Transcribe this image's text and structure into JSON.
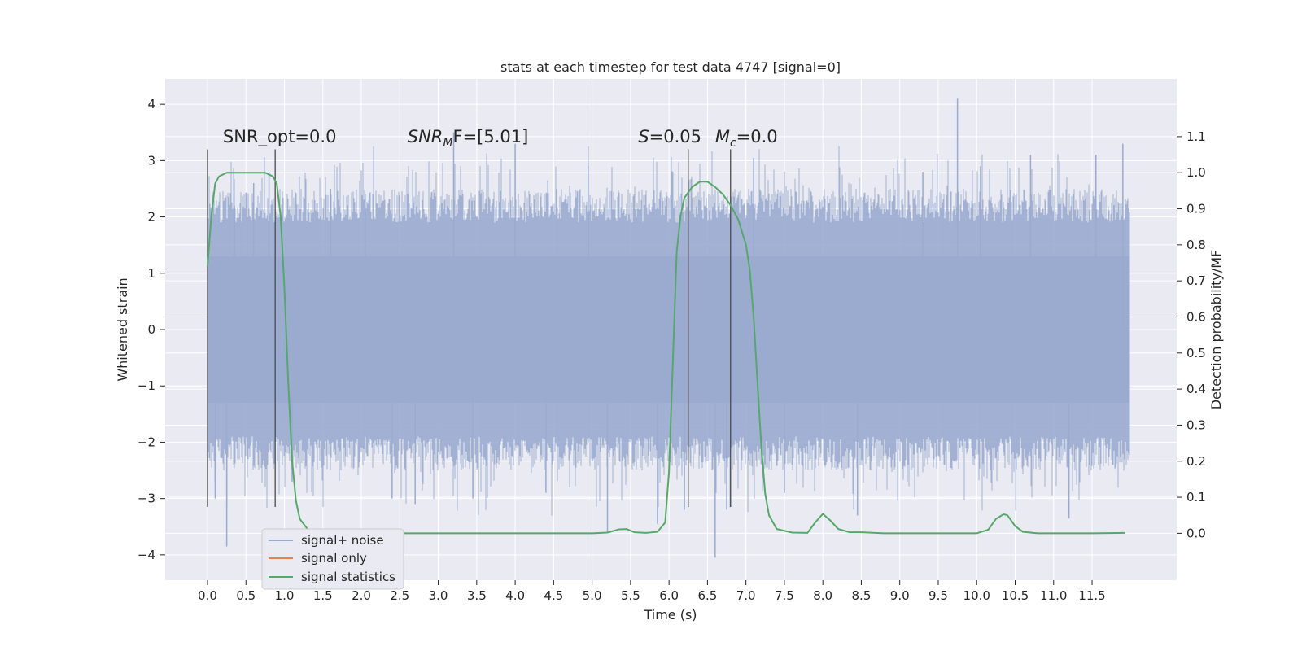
{
  "chart_data": {
    "type": "line",
    "title": "stats at each timestep for test data 4747 [signal=0]",
    "xlabel": "Time (s)",
    "ylabel": "Whitened strain",
    "y2label": "Detection probability/MF",
    "xlim": [
      -0.55,
      12.6
    ],
    "ylim": [
      -4.45,
      4.45
    ],
    "y2lim": [
      -0.13,
      1.26
    ],
    "x_ticks": [
      0.0,
      0.5,
      1.0,
      1.5,
      2.0,
      2.5,
      3.0,
      3.5,
      4.0,
      4.5,
      5.0,
      5.5,
      6.0,
      6.5,
      7.0,
      7.5,
      8.0,
      8.5,
      9.0,
      9.5,
      10.0,
      10.5,
      11.0,
      11.5
    ],
    "x_tick_labels": [
      "0.0",
      "0.5",
      "1.0",
      "1.5",
      "2.0",
      "2.5",
      "3.0",
      "3.5",
      "4.0",
      "4.5",
      "5.0",
      "5.5",
      "6.0",
      "6.5",
      "7.0",
      "7.5",
      "8.0",
      "8.5",
      "9.0",
      "9.5",
      "10.0",
      "10.5",
      "11.0",
      "11.5"
    ],
    "y_ticks": [
      4,
      3,
      2,
      1,
      0,
      -1,
      -2,
      -3,
      -4
    ],
    "y_tick_labels": [
      "4",
      "3",
      "2",
      "1",
      "0",
      "−1",
      "−2",
      "−3",
      "−4"
    ],
    "y2_ticks": [
      1.1,
      1.0,
      0.9,
      0.8,
      0.7,
      0.6,
      0.5,
      0.4,
      0.3,
      0.2,
      0.1,
      0.0
    ],
    "y2_tick_labels": [
      "1.1",
      "1.0",
      "0.9",
      "0.8",
      "0.7",
      "0.6",
      "0.5",
      "0.4",
      "0.3",
      "0.2",
      "0.1",
      "0.0"
    ],
    "grid": true,
    "legend_position": "lower-left",
    "colors": {
      "background": "#eaeaf2",
      "grid": "#ffffff",
      "noise": "#9aabcf",
      "signal": "#dd8452",
      "stats": "#55a868",
      "marker": "#4a4a4a"
    },
    "series": [
      {
        "name": "signal+ noise",
        "axis": "left",
        "x_range": [
          0.0,
          11.99
        ],
        "core_band": [
          -1.3,
          1.3
        ],
        "peaks": [
          {
            "x": 0.1,
            "y": -3.0
          },
          {
            "x": 0.25,
            "y": -3.85
          },
          {
            "x": 0.35,
            "y": 2.2
          },
          {
            "x": 0.6,
            "y": 2.6
          },
          {
            "x": 0.8,
            "y": 2.8
          },
          {
            "x": 1.1,
            "y": -2.7
          },
          {
            "x": 1.6,
            "y": 2.5
          },
          {
            "x": 2.05,
            "y": 2.4
          },
          {
            "x": 2.4,
            "y": -3.0
          },
          {
            "x": 2.7,
            "y": -3.1
          },
          {
            "x": 3.2,
            "y": 3.5
          },
          {
            "x": 3.45,
            "y": -3.0
          },
          {
            "x": 4.0,
            "y": 3.3
          },
          {
            "x": 4.4,
            "y": -2.9
          },
          {
            "x": 4.95,
            "y": 2.9
          },
          {
            "x": 5.2,
            "y": -3.6
          },
          {
            "x": 5.85,
            "y": -3.45
          },
          {
            "x": 6.2,
            "y": -3.2
          },
          {
            "x": 6.6,
            "y": -4.05
          },
          {
            "x": 6.75,
            "y": -3.2
          },
          {
            "x": 7.1,
            "y": 3.05
          },
          {
            "x": 7.5,
            "y": -2.9
          },
          {
            "x": 8.45,
            "y": -3.3
          },
          {
            "x": 9.3,
            "y": 2.8
          },
          {
            "x": 9.75,
            "y": 4.1
          },
          {
            "x": 10.05,
            "y": 2.9
          },
          {
            "x": 10.7,
            "y": 3.1
          },
          {
            "x": 11.2,
            "y": -3.35
          },
          {
            "x": 11.55,
            "y": 3.1
          },
          {
            "x": 11.9,
            "y": 3.3
          }
        ]
      },
      {
        "name": "signal only",
        "axis": "left",
        "x": [],
        "y": []
      },
      {
        "name": "signal statistics",
        "axis": "right",
        "x": [
          0.0,
          0.05,
          0.1,
          0.15,
          0.25,
          0.4,
          0.6,
          0.75,
          0.85,
          0.9,
          0.95,
          1.0,
          1.05,
          1.1,
          1.15,
          1.2,
          1.3,
          1.45,
          1.7,
          2.5,
          3.5,
          4.5,
          5.0,
          5.2,
          5.35,
          5.45,
          5.55,
          5.7,
          5.85,
          5.95,
          6.0,
          6.05,
          6.1,
          6.15,
          6.2,
          6.3,
          6.4,
          6.5,
          6.6,
          6.7,
          6.8,
          6.9,
          7.0,
          7.05,
          7.1,
          7.15,
          7.2,
          7.25,
          7.3,
          7.4,
          7.6,
          7.8,
          7.9,
          8.0,
          8.1,
          8.2,
          8.35,
          8.5,
          8.8,
          9.5,
          10.0,
          10.15,
          10.25,
          10.35,
          10.4,
          10.5,
          10.6,
          10.8,
          11.5,
          11.93
        ],
        "y": [
          0.74,
          0.88,
          0.97,
          0.99,
          1.0,
          1.0,
          1.0,
          1.0,
          0.99,
          0.97,
          0.88,
          0.68,
          0.42,
          0.2,
          0.09,
          0.04,
          0.012,
          0.002,
          0.0,
          0.0,
          0.0,
          0.0,
          0.0,
          0.002,
          0.011,
          0.012,
          0.003,
          0.001,
          0.004,
          0.03,
          0.17,
          0.48,
          0.78,
          0.88,
          0.93,
          0.96,
          0.975,
          0.975,
          0.96,
          0.94,
          0.91,
          0.87,
          0.8,
          0.73,
          0.6,
          0.42,
          0.24,
          0.11,
          0.05,
          0.012,
          0.002,
          0.001,
          0.03,
          0.054,
          0.035,
          0.012,
          0.003,
          0.003,
          0.0,
          0.0,
          0.0,
          0.01,
          0.04,
          0.053,
          0.05,
          0.02,
          0.004,
          0.0,
          0.0,
          0.001
        ]
      }
    ],
    "vertical_markers": [
      {
        "x": 0.0,
        "y_range": [
          -3.15,
          3.2
        ]
      },
      {
        "x": 0.88,
        "y_range": [
          -3.15,
          3.2
        ]
      },
      {
        "x": 6.25,
        "y_range": [
          -3.15,
          3.2
        ]
      },
      {
        "x": 6.8,
        "y_range": [
          -3.15,
          3.2
        ]
      }
    ],
    "annotations": [
      {
        "text": "SNR_opt=0.0",
        "x": 0.2,
        "y": 3.32,
        "italic": false
      },
      {
        "text": "SNR",
        "sub": "M",
        "rest": "F=[5.01]",
        "x": 2.6,
        "y": 3.32
      },
      {
        "text": "S",
        "rest": "=0.05",
        "x": 5.6,
        "y": 3.32
      },
      {
        "text": "M",
        "sub": "c",
        "rest": "=0.0",
        "x": 6.6,
        "y": 3.32
      }
    ],
    "legend": {
      "items": [
        "signal+ noise",
        "signal only",
        "signal statistics"
      ]
    }
  }
}
